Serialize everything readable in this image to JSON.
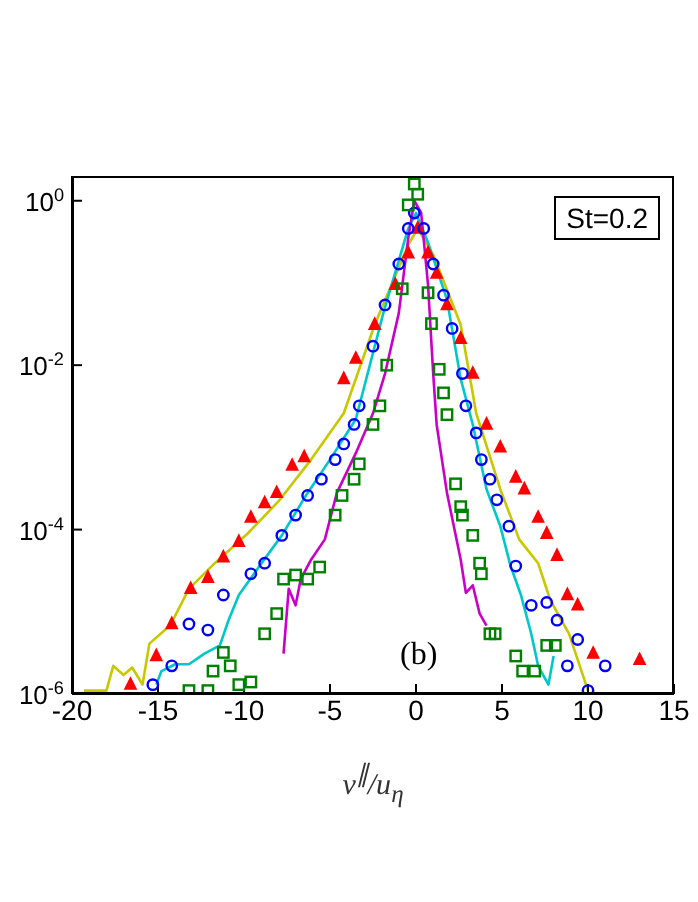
{
  "chart_data": {
    "type": "scatter",
    "xlabel": "v$^{∥}$/u$_{η}$",
    "annotations": [
      "St=0.2",
      "(b)"
    ],
    "log": "y",
    "xlim": [
      -20,
      15
    ],
    "ylim": [
      1e-06,
      2
    ],
    "xticks": [
      -20,
      -15,
      -10,
      -5,
      0,
      5,
      10,
      15
    ],
    "yticks": [
      {
        "value": 1,
        "label": "10$^{0}$"
      },
      {
        "value": 0.01,
        "label": "10$^{-2}$"
      },
      {
        "value": 0.0001,
        "label": "10$^{-4}$"
      },
      {
        "value": 1e-06,
        "label": "10$^{-6}$"
      }
    ],
    "series": [
      {
        "type": "line",
        "color": "#c8c800",
        "marker": "none",
        "x": [
          -19.3,
          -18.0,
          -17.6,
          -17.0,
          -16.5,
          -15.9,
          -15.5,
          -14.3,
          -13.2,
          -11.7,
          -9.8,
          -8.0,
          -6.1,
          -4.2,
          -2.4,
          -0.45,
          0.1,
          1.0,
          2.6,
          3.5,
          4.9,
          6.0,
          7.1,
          7.8,
          8.9,
          10.0
        ],
        "values": [
          1.1e-06,
          1.1e-06,
          2.2e-06,
          1.7e-06,
          2.1e-06,
          1.3e-06,
          4.1e-06,
          6.8e-06,
          1.9e-05,
          3.9e-05,
          8.9e-05,
          0.00022,
          0.00071,
          0.0026,
          0.031,
          0.29,
          0.46,
          0.22,
          0.031,
          0.0026,
          0.00031,
          7.6e-05,
          3.9e-05,
          1.4e-05,
          5.4e-06,
          1.1e-06
        ]
      },
      {
        "type": "line",
        "color": "#00c8c8",
        "marker": "none",
        "x": [
          -15.1,
          -14.8,
          -14.0,
          -13.2,
          -12.3,
          -11.4,
          -10.9,
          -10.3,
          -9.1,
          -7.8,
          -6.4,
          -5.0,
          -3.5,
          -1.9,
          -0.45,
          0,
          0.7,
          1.8,
          2.6,
          3.3,
          4.1,
          4.9,
          5.5,
          6.1,
          6.7,
          7.1,
          7.7,
          8.0
        ],
        "values": [
          1.3e-06,
          1.9e-06,
          2.3e-06,
          2.3e-06,
          3.1e-06,
          3.9e-06,
          7.9e-06,
          1.6e-05,
          3.6e-05,
          8.5e-05,
          0.00026,
          0.00071,
          0.0022,
          0.043,
          0.46,
          0.71,
          0.31,
          0.063,
          0.0068,
          0.0019,
          0.00031,
          0.00011,
          3.6e-05,
          1.6e-05,
          5.4e-06,
          2.2e-06,
          1.3e-06,
          2.9e-06
        ]
      },
      {
        "type": "line",
        "color": "#c800c8",
        "marker": "none",
        "x": [
          -7.7,
          -7.4,
          -7.0,
          -6.7,
          -6.1,
          -5.3,
          -4.6,
          -3.5,
          -2.5,
          -1.8,
          -1.0,
          -0.45,
          -0.1,
          0.3,
          0.7,
          1.0,
          1.2,
          1.8,
          2.6,
          2.9,
          3.3,
          3.7,
          4.1
        ],
        "values": [
          3.1e-06,
          1.9e-05,
          1.2e-05,
          2.5e-05,
          4.3e-05,
          7.6e-05,
          0.00028,
          0.00085,
          0.0026,
          0.0079,
          0.043,
          0.35,
          1.0,
          0.71,
          0.095,
          0.0079,
          0.0019,
          0.00028,
          4.3e-05,
          1.7e-05,
          2.1e-05,
          9.5e-06,
          6.8e-06
        ]
      },
      {
        "color": "#ff0000",
        "marker": "triangle",
        "x": [
          -16.6,
          -15.1,
          -14.2,
          -13.1,
          -12.1,
          -11.2,
          -10.3,
          -9.6,
          -8.8,
          -8.1,
          -7.2,
          -6.5,
          -4.2,
          -3.5,
          -2.4,
          -1.2,
          -0.45,
          0.1,
          0.7,
          1.2,
          1.8,
          2.6,
          3.3,
          4.1,
          4.9,
          5.8,
          6.3,
          7.1,
          7.6,
          8.2,
          8.8,
          9.4,
          10.3,
          13.0
        ],
        "values": [
          1.3e-06,
          2.9e-06,
          7.1e-06,
          1.9e-05,
          2.6e-05,
          4.6e-05,
          7.1e-05,
          0.00014,
          0.00021,
          0.00028,
          0.0006,
          0.00076,
          0.0068,
          0.012,
          0.031,
          0.095,
          0.23,
          0.46,
          0.23,
          0.13,
          0.054,
          0.021,
          0.0079,
          0.0019,
          0.001,
          0.00043,
          0.00031,
          0.00014,
          8.9e-05,
          4.8e-05,
          1.6e-05,
          1.2e-05,
          3.1e-06,
          2.6e-06
        ]
      },
      {
        "color": "#0000ff",
        "marker": "circle",
        "x": [
          -15.3,
          -14.2,
          -13.2,
          -12.1,
          -11.2,
          -9.6,
          -8.8,
          -7.8,
          -7.0,
          -6.3,
          -5.5,
          -4.7,
          -4.2,
          -3.6,
          -3.3,
          -2.5,
          -1.8,
          -1.0,
          -0.45,
          -0.1,
          0.45,
          1.0,
          1.6,
          2.1,
          2.7,
          2.9,
          3.5,
          3.8,
          4.3,
          4.7,
          5.4,
          5.8,
          6.7,
          7.6,
          8.2,
          8.8,
          9.4,
          10.0,
          11.0
        ],
        "values": [
          1.3e-06,
          2.2e-06,
          7.1e-06,
          6e-06,
          1.6e-05,
          2.9e-05,
          3.9e-05,
          8.5e-05,
          0.00015,
          0.00026,
          0.00041,
          0.00071,
          0.0011,
          0.0019,
          0.0032,
          0.017,
          0.054,
          0.17,
          0.46,
          0.71,
          0.46,
          0.17,
          0.071,
          0.028,
          0.0079,
          0.0032,
          0.0015,
          0.00071,
          0.00041,
          0.00023,
          0.00011,
          3.6e-05,
          1.2e-05,
          1.3e-05,
          7.9e-06,
          2.2e-06,
          4.6e-06,
          1.1e-06,
          2.2e-06
        ]
      },
      {
        "color": "#008000",
        "marker": "square",
        "x": [
          -13.2,
          -12.1,
          -11.8,
          -11.2,
          -10.8,
          -10.3,
          -9.6,
          -8.8,
          -8.1,
          -7.7,
          -7.0,
          -6.3,
          -5.6,
          -4.7,
          -4.3,
          -3.6,
          -3.3,
          -2.5,
          -2.1,
          -1.7,
          -0.8,
          -0.45,
          -0.1,
          0.1,
          0.7,
          0.9,
          1.35,
          1.6,
          1.8,
          2.3,
          2.6,
          2.7,
          3.3,
          3.7,
          3.8,
          4.3,
          4.6,
          5.8,
          6.2,
          6.9,
          7.6,
          8.1
        ],
        "values": [
          1.1e-06,
          1.1e-06,
          1.9e-06,
          3.2e-06,
          2.2e-06,
          1.3e-06,
          1.4e-06,
          5.4e-06,
          9.5e-06,
          2.5e-05,
          2.8e-05,
          2.5e-05,
          3.5e-05,
          0.00015,
          0.00026,
          0.00041,
          0.00063,
          0.0019,
          0.0032,
          0.01,
          0.085,
          0.89,
          1.6,
          1.2,
          0.076,
          0.032,
          0.0089,
          0.0046,
          0.0025,
          0.00036,
          0.00019,
          0.00015,
          8.5e-05,
          3.9e-05,
          2.9e-05,
          5.4e-06,
          5.4e-06,
          2.9e-06,
          1.9e-06,
          1.9e-06,
          3.9e-06,
          3.9e-06
        ]
      }
    ]
  }
}
